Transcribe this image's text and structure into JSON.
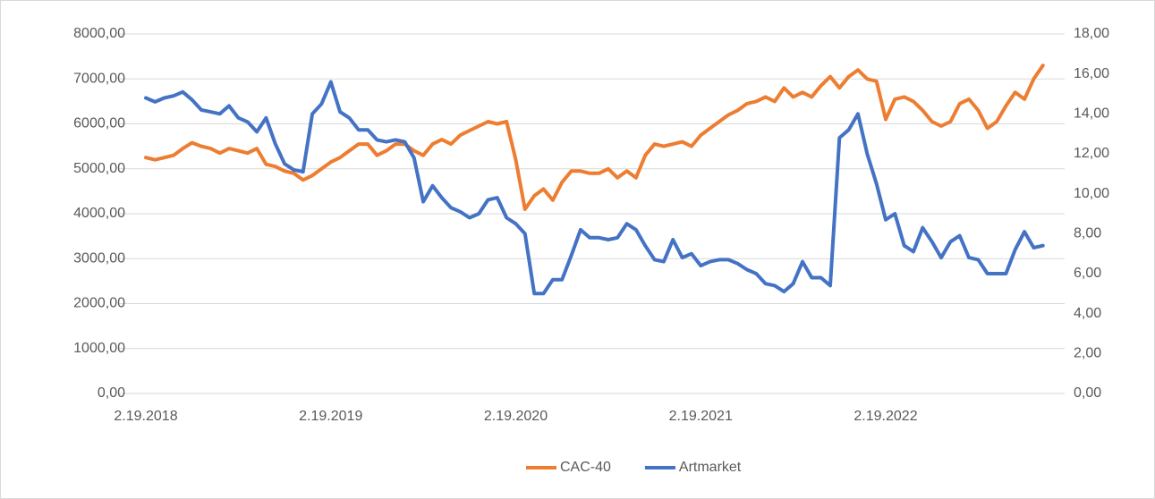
{
  "chart_data": {
    "type": "line",
    "categories": [
      "2.19.2018",
      null,
      null,
      null,
      null,
      null,
      null,
      null,
      null,
      null,
      null,
      null,
      null,
      null,
      null,
      null,
      null,
      null,
      null,
      null,
      "2.19.2019",
      null,
      null,
      null,
      null,
      null,
      null,
      null,
      null,
      null,
      null,
      null,
      null,
      null,
      null,
      null,
      null,
      null,
      null,
      null,
      "2.19.2020",
      null,
      null,
      null,
      null,
      null,
      null,
      null,
      null,
      null,
      null,
      null,
      null,
      null,
      null,
      null,
      null,
      null,
      null,
      null,
      "2.19.2021",
      null,
      null,
      null,
      null,
      null,
      null,
      null,
      null,
      null,
      null,
      null,
      null,
      null,
      null,
      null,
      null,
      null,
      null,
      null,
      "2.19.2022",
      null,
      null,
      null,
      null,
      null,
      null,
      null,
      null,
      null,
      null,
      null,
      null,
      null,
      null,
      null,
      null,
      null
    ],
    "series": [
      {
        "name": "CAC-40",
        "color": "#ed7d31",
        "values": [
          5250,
          5200,
          5250,
          5300,
          5450,
          5580,
          5500,
          5450,
          5350,
          5450,
          5400,
          5350,
          5450,
          5100,
          5050,
          4950,
          4900,
          4750,
          4850,
          5000,
          5150,
          5250,
          5400,
          5550,
          5550,
          5300,
          5400,
          5550,
          5550,
          5400,
          5300,
          5550,
          5650,
          5550,
          5750,
          5850,
          5950,
          6050,
          6000,
          6050,
          5200,
          4100,
          4400,
          4550,
          4300,
          4700,
          4950,
          4950,
          4900,
          4900,
          5000,
          4800,
          4950,
          4800,
          5300,
          5550,
          5500,
          5550,
          5600,
          5500,
          5750,
          5900,
          6050,
          6200,
          6300,
          6450,
          6500,
          6600,
          6500,
          6800,
          6600,
          6700,
          6600,
          6850,
          7050,
          6800,
          7050,
          7200,
          7000,
          6950,
          6100,
          6550,
          6600,
          6500,
          6300,
          6050,
          5950,
          6050,
          6450,
          6550,
          6300,
          5900,
          6050,
          6400,
          6700,
          6550,
          7000,
          7300
        ]
      },
      {
        "name": "Artmarket",
        "color": "#4472c4",
        "axis": "y2",
        "values": [
          14.8,
          14.6,
          14.8,
          14.9,
          15.1,
          14.7,
          14.2,
          14.1,
          14.0,
          14.4,
          13.8,
          13.6,
          13.1,
          13.8,
          12.5,
          11.5,
          11.2,
          11.1,
          14.0,
          14.5,
          15.6,
          14.1,
          13.8,
          13.2,
          13.2,
          12.7,
          12.6,
          12.7,
          12.6,
          11.8,
          9.6,
          10.4,
          9.8,
          9.3,
          9.1,
          8.8,
          9.0,
          9.7,
          9.8,
          8.8,
          8.5,
          8.0,
          5.0,
          5.0,
          5.7,
          5.7,
          6.9,
          8.2,
          7.8,
          7.8,
          7.7,
          7.8,
          8.5,
          8.2,
          7.4,
          6.7,
          6.6,
          7.7,
          6.8,
          7.0,
          6.4,
          6.6,
          6.7,
          6.7,
          6.5,
          6.2,
          6.0,
          5.5,
          5.4,
          5.1,
          5.5,
          6.6,
          5.8,
          5.8,
          5.4,
          12.8,
          13.2,
          14.0,
          12.0,
          10.5,
          8.7,
          9.0,
          7.4,
          7.1,
          8.3,
          7.6,
          6.8,
          7.6,
          7.9,
          6.8,
          6.7,
          6.0,
          6.0,
          6.0,
          7.2,
          8.1,
          7.3,
          7.4
        ]
      }
    ],
    "ylim": [
      0,
      8000
    ],
    "yticks": [
      {
        "value": 0,
        "label": "0,00"
      },
      {
        "value": 1000,
        "label": "1000,00"
      },
      {
        "value": 2000,
        "label": "2000,00"
      },
      {
        "value": 3000,
        "label": "3000,00"
      },
      {
        "value": 4000,
        "label": "4000,00"
      },
      {
        "value": 5000,
        "label": "5000,00"
      },
      {
        "value": 6000,
        "label": "6000,00"
      },
      {
        "value": 7000,
        "label": "7000,00"
      },
      {
        "value": 8000,
        "label": "8000,00"
      }
    ],
    "y2lim": [
      0,
      18
    ],
    "y2ticks": [
      {
        "value": 0,
        "label": "0,00"
      },
      {
        "value": 2,
        "label": "2,00"
      },
      {
        "value": 4,
        "label": "4,00"
      },
      {
        "value": 6,
        "label": "6,00"
      },
      {
        "value": 8,
        "label": "8,00"
      },
      {
        "value": 10,
        "label": "10,00"
      },
      {
        "value": 12,
        "label": "12,00"
      },
      {
        "value": 14,
        "label": "14,00"
      },
      {
        "value": 16,
        "label": "16,00"
      },
      {
        "value": 18,
        "label": "18,00"
      }
    ],
    "grid": true,
    "legend": "bottom"
  }
}
